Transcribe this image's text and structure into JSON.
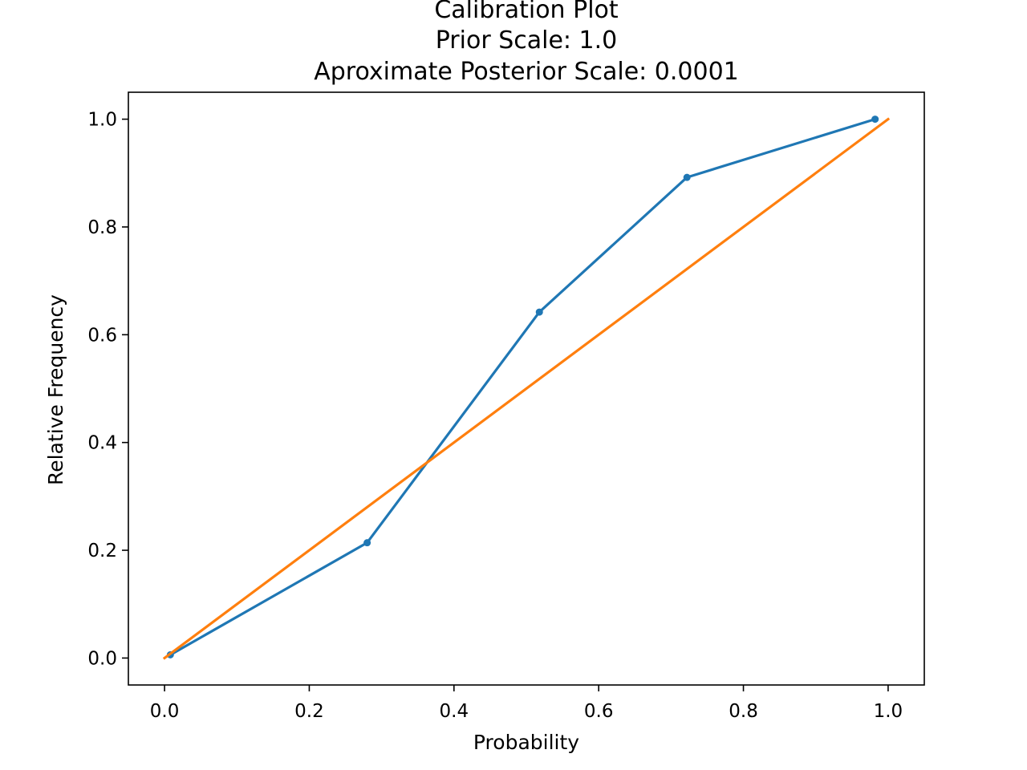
{
  "chart_data": {
    "type": "line",
    "title_lines": [
      "Calibration Plot",
      "Prior Scale: 1.0",
      "Aproximate Posterior Scale: 0.0001"
    ],
    "xlabel": "Probability",
    "ylabel": "Relative Frequency",
    "xlim": [
      -0.05,
      1.05
    ],
    "ylim": [
      -0.05,
      1.05
    ],
    "xticks": [
      "0.0",
      "0.2",
      "0.4",
      "0.6",
      "0.8",
      "1.0"
    ],
    "yticks": [
      "0.0",
      "0.2",
      "0.4",
      "0.6",
      "0.8",
      "1.0"
    ],
    "grid": false,
    "series": [
      {
        "color": "#1f77b4",
        "marker": "circle",
        "x": [
          0.008,
          0.28,
          0.518,
          0.722,
          0.982
        ],
        "y": [
          0.006,
          0.214,
          0.642,
          0.892,
          1.0
        ]
      },
      {
        "color": "#ff7f0e",
        "marker": "none",
        "x": [
          0.0,
          1.0
        ],
        "y": [
          0.0,
          1.0
        ]
      }
    ]
  }
}
